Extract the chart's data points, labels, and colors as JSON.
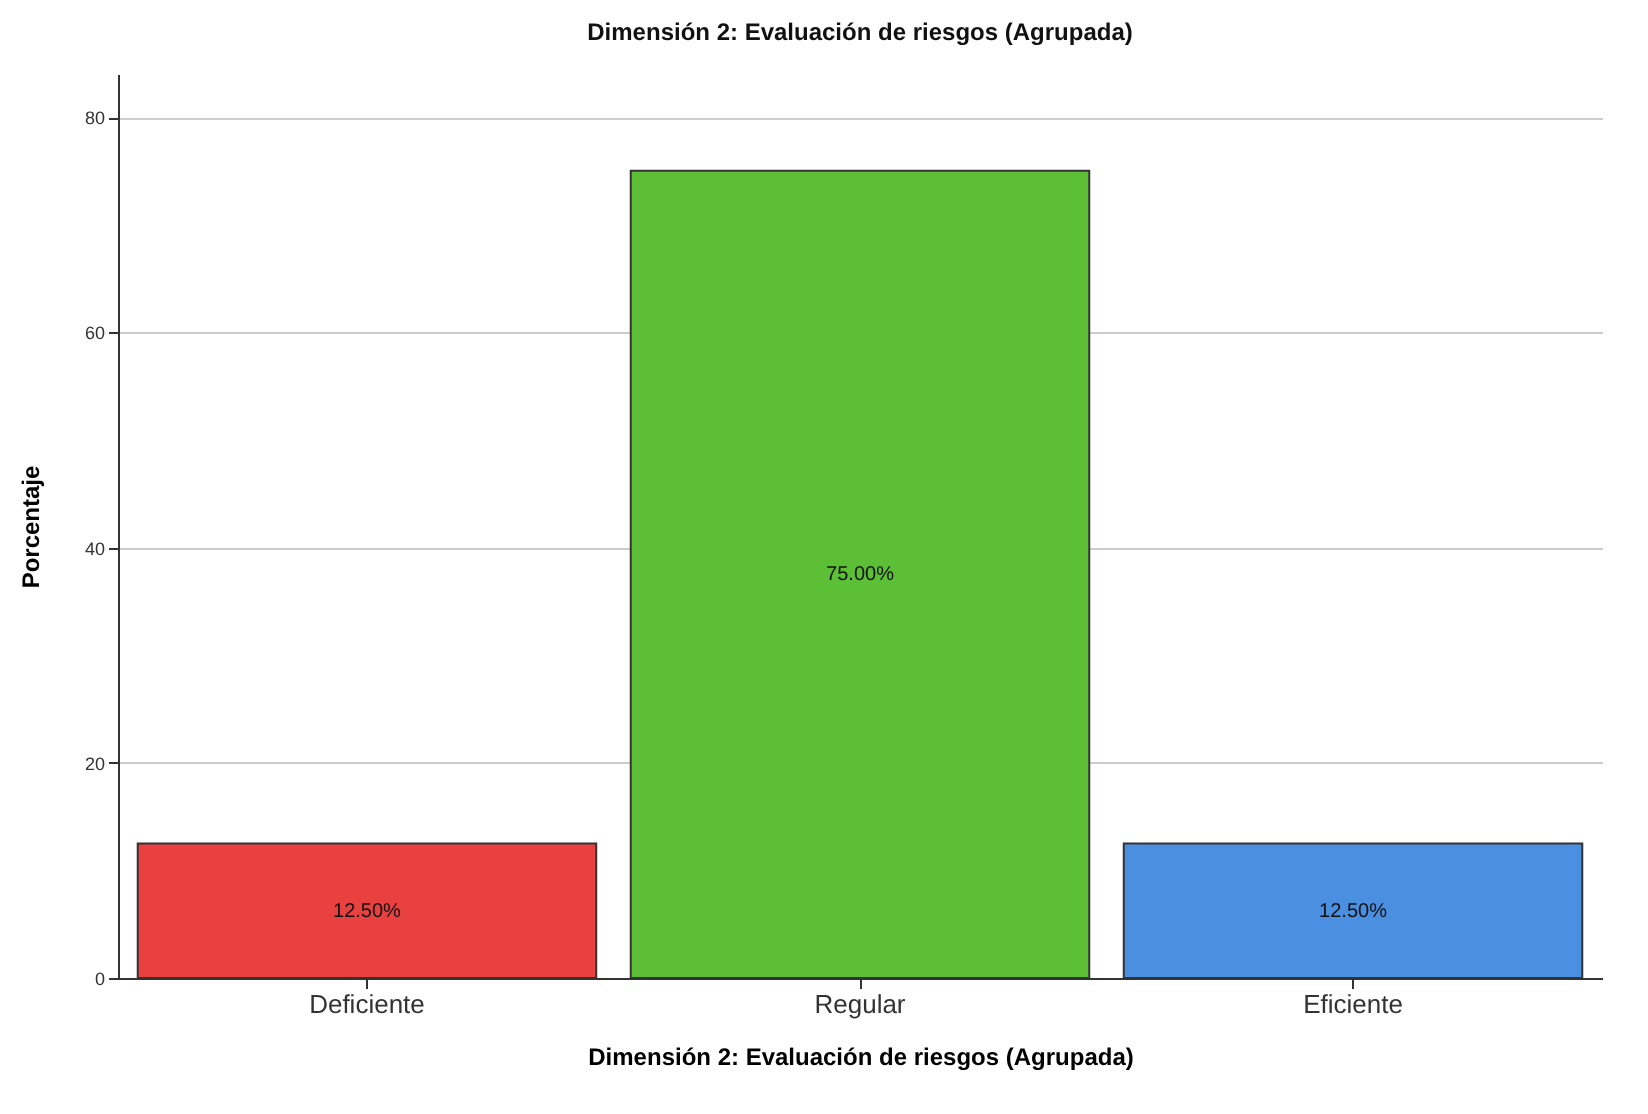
{
  "chart_data": {
    "type": "bar",
    "title": "Dimensión 2: Evaluación de riesgos (Agrupada)",
    "xlabel": "Dimensión 2: Evaluación de riesgos (Agrupada)",
    "ylabel": "Porcentaje",
    "categories": [
      "Deficiente",
      "Regular",
      "Eficiente"
    ],
    "values": [
      12.5,
      75,
      12.5
    ],
    "colors": [
      "#e8413f",
      "#5cbf36",
      "#4a8fe0"
    ],
    "value_labels": [
      "12.50%",
      "75.00%",
      "12.50%"
    ],
    "ylim": [
      0,
      84
    ],
    "yticks": [
      0,
      20,
      40,
      60,
      80
    ],
    "grid": "y"
  }
}
